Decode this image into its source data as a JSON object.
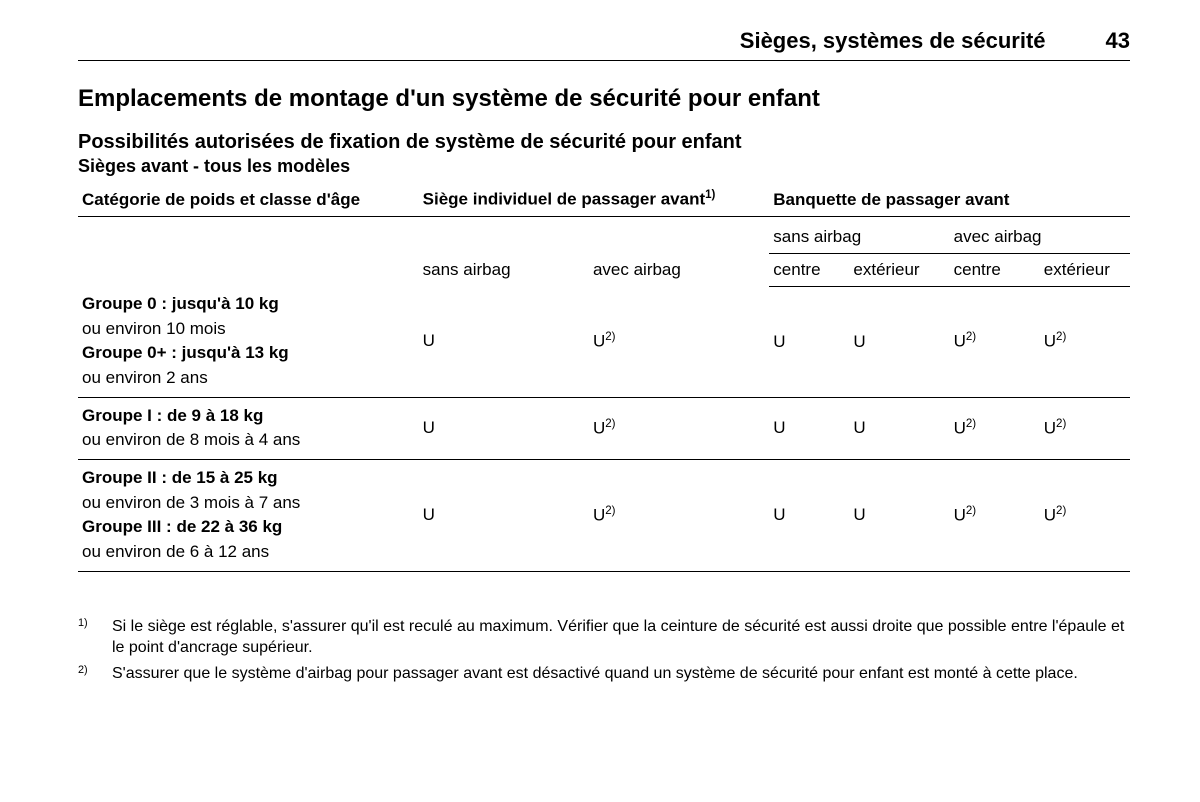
{
  "header": {
    "chapter": "Sièges, systèmes de sécurité",
    "page_number": "43"
  },
  "section": {
    "title": "Emplacements de montage d'un système de sécurité pour enfant",
    "subtitle": "Possibilités autorisées de fixation de système de sécurité pour enfant",
    "table_title": "Sièges avant - tous les modèles"
  },
  "table": {
    "columns": {
      "category_label": "Catégorie de poids et classe d'âge",
      "individual": {
        "label": "Siège individuel de passager avant",
        "footnote_ref": "1)",
        "sub": {
          "col1": "sans airbag",
          "col2": "avec airbag"
        }
      },
      "bench": {
        "label": "Banquette de passager avant",
        "sub": {
          "sans_label": "sans airbag",
          "avec_label": "avec airbag",
          "sub_sans_centre": "centre",
          "sub_sans_ext": "extérieur",
          "sub_avec_centre": "centre",
          "sub_avec_ext": "extérieur"
        }
      }
    },
    "groups": [
      {
        "lines": [
          {
            "bold": true,
            "text": "Groupe 0 : jusqu'à 10 kg"
          },
          {
            "bold": false,
            "text": "ou environ 10 mois"
          },
          {
            "bold": true,
            "text": "Groupe 0+ : jusqu'à 13 kg"
          },
          {
            "bold": false,
            "text": "ou environ 2 ans"
          }
        ],
        "values": {
          "ind_sans": "U",
          "ind_avec": {
            "text": "U",
            "sup": "2)"
          },
          "bench_sans_centre": "U",
          "bench_sans_ext": "U",
          "bench_avec_centre": {
            "text": "U",
            "sup": "2)"
          },
          "bench_avec_ext": {
            "text": "U",
            "sup": "2)"
          }
        }
      },
      {
        "lines": [
          {
            "bold": true,
            "text": "Groupe I : de 9 à 18 kg"
          },
          {
            "bold": false,
            "text": "ou environ de 8 mois à 4 ans"
          }
        ],
        "values": {
          "ind_sans": "U",
          "ind_avec": {
            "text": "U",
            "sup": "2)"
          },
          "bench_sans_centre": "U",
          "bench_sans_ext": "U",
          "bench_avec_centre": {
            "text": "U",
            "sup": "2)"
          },
          "bench_avec_ext": {
            "text": "U",
            "sup": "2)"
          }
        }
      },
      {
        "lines": [
          {
            "bold": true,
            "text": "Groupe II : de 15 à 25 kg"
          },
          {
            "bold": false,
            "text": "ou environ de 3 mois à 7 ans"
          },
          {
            "bold": true,
            "text": "Groupe III : de 22 à 36 kg"
          },
          {
            "bold": false,
            "text": "ou environ de 6 à 12 ans"
          }
        ],
        "values": {
          "ind_sans": "U",
          "ind_avec": {
            "text": "U",
            "sup": "2)"
          },
          "bench_sans_centre": "U",
          "bench_sans_ext": "U",
          "bench_avec_centre": {
            "text": "U",
            "sup": "2)"
          },
          "bench_avec_ext": {
            "text": "U",
            "sup": "2)"
          }
        }
      }
    ]
  },
  "footnotes": [
    {
      "marker": "1)",
      "text": "Si le siège est réglable, s'assurer qu'il est reculé au maximum. Vérifier que la ceinture de sécurité est aussi droite que possible entre l'épaule et le point d'ancrage supérieur."
    },
    {
      "marker": "2)",
      "text": "S'assurer que le système d'airbag pour passager avant est désactivé quand un système de sécurité pour enfant est monté à cette place."
    }
  ]
}
